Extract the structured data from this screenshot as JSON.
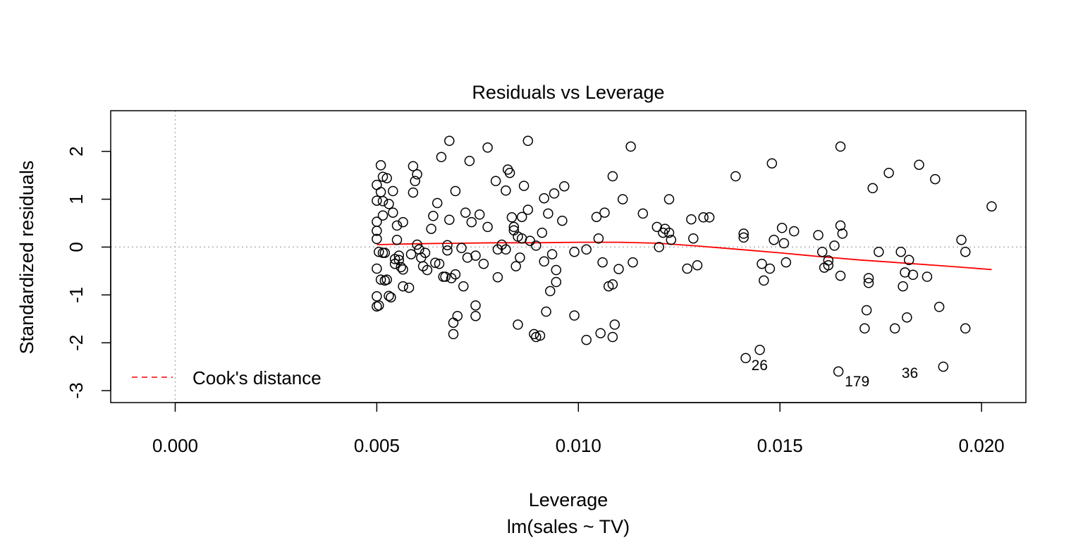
{
  "chart_data": {
    "type": "scatter",
    "title": "Residuals vs Leverage",
    "xlabel": "Leverage",
    "subtitle": "lm(sales ~ TV)",
    "ylabel": "Standardized residuals",
    "xlim": [
      -0.0016,
      0.0211
    ],
    "ylim": [
      -3.25,
      2.85
    ],
    "x_ticks": [
      "0.000",
      "0.005",
      "0.010",
      "0.015",
      "0.020"
    ],
    "x_tick_values": [
      0.0,
      0.005,
      0.01,
      0.015,
      0.02
    ],
    "y_ticks": [
      "-3",
      "-2",
      "-1",
      "0",
      "1",
      "2"
    ],
    "y_tick_values": [
      -3,
      -2,
      -1,
      0,
      1,
      2
    ],
    "reference_lines": {
      "x": 0,
      "y": 0,
      "style": "dotted",
      "color": "#b3b3b3"
    },
    "legend": {
      "position": "bottom-left",
      "entries": [
        {
          "label": "Cook's distance",
          "style": "dashed",
          "color": "#ff0000"
        }
      ]
    },
    "colors": {
      "points": "#000000",
      "smooth": "#ff0000"
    },
    "points": [
      {
        "x": 0.005,
        "y": 1.3
      },
      {
        "x": 0.005,
        "y": 0.97
      },
      {
        "x": 0.005,
        "y": 0.53
      },
      {
        "x": 0.005,
        "y": 0.34
      },
      {
        "x": 0.005,
        "y": 0.17
      },
      {
        "x": 0.005,
        "y": -0.45
      },
      {
        "x": 0.005,
        "y": -1.03
      },
      {
        "x": 0.005,
        "y": -1.24
      },
      {
        "x": 0.00505,
        "y": -1.22
      },
      {
        "x": 0.00505,
        "y": -0.1
      },
      {
        "x": 0.0051,
        "y": 1.71
      },
      {
        "x": 0.0051,
        "y": 1.15
      },
      {
        "x": 0.0051,
        "y": -0.68
      },
      {
        "x": 0.00515,
        "y": 1.47
      },
      {
        "x": 0.00515,
        "y": 0.96
      },
      {
        "x": 0.00515,
        "y": 0.66
      },
      {
        "x": 0.00515,
        "y": -0.12
      },
      {
        "x": 0.0052,
        "y": -0.12
      },
      {
        "x": 0.0052,
        "y": -0.7
      },
      {
        "x": 0.00525,
        "y": 1.44
      },
      {
        "x": 0.00525,
        "y": -0.68
      },
      {
        "x": 0.0053,
        "y": 0.9
      },
      {
        "x": 0.0053,
        "y": -1.02
      },
      {
        "x": 0.00535,
        "y": -1.05
      },
      {
        "x": 0.0054,
        "y": 1.17
      },
      {
        "x": 0.0054,
        "y": 0.72
      },
      {
        "x": 0.00545,
        "y": -0.25
      },
      {
        "x": 0.00545,
        "y": -0.35
      },
      {
        "x": 0.0055,
        "y": 0.45
      },
      {
        "x": 0.0055,
        "y": 0.15
      },
      {
        "x": 0.00555,
        "y": -0.18
      },
      {
        "x": 0.00555,
        "y": -0.27
      },
      {
        "x": 0.0056,
        "y": -0.42
      },
      {
        "x": 0.00565,
        "y": 0.52
      },
      {
        "x": 0.00565,
        "y": -0.47
      },
      {
        "x": 0.00565,
        "y": -0.82
      },
      {
        "x": 0.0058,
        "y": -0.85
      },
      {
        "x": 0.00585,
        "y": -0.15
      },
      {
        "x": 0.0059,
        "y": 1.69
      },
      {
        "x": 0.0059,
        "y": 1.14
      },
      {
        "x": 0.00595,
        "y": 1.38
      },
      {
        "x": 0.006,
        "y": 1.52
      },
      {
        "x": 0.006,
        "y": 0.05
      },
      {
        "x": 0.00605,
        "y": -0.05
      },
      {
        "x": 0.0061,
        "y": -0.22
      },
      {
        "x": 0.00615,
        "y": -0.4
      },
      {
        "x": 0.0062,
        "y": -0.12
      },
      {
        "x": 0.00625,
        "y": -0.48
      },
      {
        "x": 0.00635,
        "y": 0.38
      },
      {
        "x": 0.0064,
        "y": 0.65
      },
      {
        "x": 0.00645,
        "y": -0.33
      },
      {
        "x": 0.0065,
        "y": 0.92
      },
      {
        "x": 0.00655,
        "y": -0.35
      },
      {
        "x": 0.0066,
        "y": 1.88
      },
      {
        "x": 0.00665,
        "y": -0.62
      },
      {
        "x": 0.0067,
        "y": -0.62
      },
      {
        "x": 0.00675,
        "y": 0.04
      },
      {
        "x": 0.00675,
        "y": -0.07
      },
      {
        "x": 0.0068,
        "y": 2.22
      },
      {
        "x": 0.0068,
        "y": 0.57
      },
      {
        "x": 0.00685,
        "y": -0.65
      },
      {
        "x": 0.0069,
        "y": -1.58
      },
      {
        "x": 0.0069,
        "y": -1.82
      },
      {
        "x": 0.00695,
        "y": 1.17
      },
      {
        "x": 0.00695,
        "y": -0.57
      },
      {
        "x": 0.007,
        "y": -1.44
      },
      {
        "x": 0.0071,
        "y": -0.02
      },
      {
        "x": 0.00715,
        "y": -0.82
      },
      {
        "x": 0.0072,
        "y": 0.72
      },
      {
        "x": 0.00725,
        "y": -0.22
      },
      {
        "x": 0.0073,
        "y": 1.8
      },
      {
        "x": 0.00735,
        "y": 0.52
      },
      {
        "x": 0.00745,
        "y": -0.18
      },
      {
        "x": 0.00745,
        "y": -1.22
      },
      {
        "x": 0.00745,
        "y": -1.44
      },
      {
        "x": 0.00755,
        "y": 0.68
      },
      {
        "x": 0.00765,
        "y": -0.35
      },
      {
        "x": 0.00775,
        "y": 2.08
      },
      {
        "x": 0.00775,
        "y": 0.42
      },
      {
        "x": 0.00795,
        "y": 1.38
      },
      {
        "x": 0.008,
        "y": -0.05
      },
      {
        "x": 0.008,
        "y": -0.63
      },
      {
        "x": 0.0081,
        "y": 0.05
      },
      {
        "x": 0.0082,
        "y": -0.05
      },
      {
        "x": 0.0082,
        "y": 1.18
      },
      {
        "x": 0.00825,
        "y": 1.62
      },
      {
        "x": 0.0083,
        "y": 1.55
      },
      {
        "x": 0.00835,
        "y": 0.62
      },
      {
        "x": 0.0084,
        "y": 0.42
      },
      {
        "x": 0.0084,
        "y": 0.35
      },
      {
        "x": 0.00845,
        "y": -0.4
      },
      {
        "x": 0.0085,
        "y": -1.62
      },
      {
        "x": 0.0085,
        "y": 0.22
      },
      {
        "x": 0.00855,
        "y": -0.22
      },
      {
        "x": 0.0086,
        "y": 0.63
      },
      {
        "x": 0.0086,
        "y": 0.18
      },
      {
        "x": 0.00865,
        "y": 1.28
      },
      {
        "x": 0.00875,
        "y": 2.22
      },
      {
        "x": 0.00875,
        "y": 0.78
      },
      {
        "x": 0.0088,
        "y": 0.13
      },
      {
        "x": 0.0089,
        "y": -1.82
      },
      {
        "x": 0.00895,
        "y": -1.88
      },
      {
        "x": 0.00895,
        "y": 0.03
      },
      {
        "x": 0.00905,
        "y": -1.85
      },
      {
        "x": 0.0091,
        "y": 0.3
      },
      {
        "x": 0.00915,
        "y": -0.3
      },
      {
        "x": 0.00915,
        "y": 1.02
      },
      {
        "x": 0.0092,
        "y": -1.35
      },
      {
        "x": 0.00925,
        "y": 0.7
      },
      {
        "x": 0.0093,
        "y": -0.92
      },
      {
        "x": 0.00935,
        "y": -0.15
      },
      {
        "x": 0.0094,
        "y": 1.12
      },
      {
        "x": 0.00945,
        "y": -0.48
      },
      {
        "x": 0.00945,
        "y": -0.73
      },
      {
        "x": 0.0096,
        "y": 0.55
      },
      {
        "x": 0.00965,
        "y": 1.27
      },
      {
        "x": 0.0099,
        "y": -0.1
      },
      {
        "x": 0.0099,
        "y": -1.43
      },
      {
        "x": 0.0102,
        "y": -0.05
      },
      {
        "x": 0.0102,
        "y": -1.94
      },
      {
        "x": 0.01045,
        "y": 0.63
      },
      {
        "x": 0.0105,
        "y": 0.18
      },
      {
        "x": 0.01055,
        "y": -1.8
      },
      {
        "x": 0.0106,
        "y": -0.32
      },
      {
        "x": 0.01065,
        "y": 0.72
      },
      {
        "x": 0.01075,
        "y": -0.82
      },
      {
        "x": 0.01085,
        "y": -1.88
      },
      {
        "x": 0.01085,
        "y": -0.78
      },
      {
        "x": 0.01085,
        "y": 1.48
      },
      {
        "x": 0.0109,
        "y": -1.62
      },
      {
        "x": 0.011,
        "y": -0.46
      },
      {
        "x": 0.0111,
        "y": 1.0
      },
      {
        "x": 0.0113,
        "y": 2.1
      },
      {
        "x": 0.01135,
        "y": -0.32
      },
      {
        "x": 0.0116,
        "y": 0.7
      },
      {
        "x": 0.01195,
        "y": 0.42
      },
      {
        "x": 0.012,
        "y": 0.0
      },
      {
        "x": 0.0121,
        "y": 0.3
      },
      {
        "x": 0.01215,
        "y": 0.38
      },
      {
        "x": 0.01225,
        "y": 1.0
      },
      {
        "x": 0.01225,
        "y": 0.3
      },
      {
        "x": 0.0123,
        "y": 0.15
      },
      {
        "x": 0.0127,
        "y": -0.45
      },
      {
        "x": 0.0128,
        "y": 0.58
      },
      {
        "x": 0.01285,
        "y": 0.18
      },
      {
        "x": 0.01295,
        "y": -0.38
      },
      {
        "x": 0.0131,
        "y": 0.62
      },
      {
        "x": 0.01325,
        "y": 0.62
      },
      {
        "x": 0.0139,
        "y": 1.48
      },
      {
        "x": 0.0141,
        "y": 0.28
      },
      {
        "x": 0.0141,
        "y": 0.2
      },
      {
        "x": 0.01415,
        "y": -2.32
      },
      {
        "x": 0.0145,
        "y": -2.15
      },
      {
        "x": 0.01455,
        "y": -0.35
      },
      {
        "x": 0.0146,
        "y": -0.7
      },
      {
        "x": 0.01475,
        "y": -0.45
      },
      {
        "x": 0.0148,
        "y": 1.75
      },
      {
        "x": 0.01485,
        "y": 0.15
      },
      {
        "x": 0.01505,
        "y": 0.4
      },
      {
        "x": 0.0151,
        "y": 0.08
      },
      {
        "x": 0.01515,
        "y": -0.32
      },
      {
        "x": 0.01535,
        "y": 0.33
      },
      {
        "x": 0.01595,
        "y": 0.25
      },
      {
        "x": 0.01605,
        "y": -0.1
      },
      {
        "x": 0.0161,
        "y": -0.43
      },
      {
        "x": 0.0162,
        "y": -0.28
      },
      {
        "x": 0.0162,
        "y": -0.38
      },
      {
        "x": 0.01635,
        "y": 0.03
      },
      {
        "x": 0.01645,
        "y": -2.6
      },
      {
        "x": 0.0165,
        "y": 2.1
      },
      {
        "x": 0.0165,
        "y": 0.45
      },
      {
        "x": 0.0165,
        "y": -0.6
      },
      {
        "x": 0.01655,
        "y": 0.28
      },
      {
        "x": 0.0171,
        "y": -1.7
      },
      {
        "x": 0.01715,
        "y": -1.32
      },
      {
        "x": 0.0172,
        "y": -0.65
      },
      {
        "x": 0.0172,
        "y": -0.75
      },
      {
        "x": 0.0173,
        "y": 1.23
      },
      {
        "x": 0.01745,
        "y": -0.1
      },
      {
        "x": 0.0177,
        "y": 1.55
      },
      {
        "x": 0.01785,
        "y": -1.7
      },
      {
        "x": 0.018,
        "y": -0.1
      },
      {
        "x": 0.01805,
        "y": -0.82
      },
      {
        "x": 0.0181,
        "y": -0.53
      },
      {
        "x": 0.01815,
        "y": -1.47
      },
      {
        "x": 0.0182,
        "y": -0.27
      },
      {
        "x": 0.0183,
        "y": -0.58
      },
      {
        "x": 0.01845,
        "y": 1.72
      },
      {
        "x": 0.01865,
        "y": -0.62
      },
      {
        "x": 0.01885,
        "y": 1.42
      },
      {
        "x": 0.01895,
        "y": -1.25
      },
      {
        "x": 0.01905,
        "y": -2.5
      },
      {
        "x": 0.0195,
        "y": 0.15
      },
      {
        "x": 0.0196,
        "y": -0.1
      },
      {
        "x": 0.0196,
        "y": -1.7
      },
      {
        "x": 0.02025,
        "y": 0.85
      }
    ],
    "point_labels": [
      {
        "text": "26",
        "x": 0.01415,
        "y": -2.32
      },
      {
        "text": "179",
        "x": 0.01645,
        "y": -2.6
      },
      {
        "text": "36",
        "x": 0.01905,
        "y": -2.5
      }
    ],
    "smooth_line": {
      "x": [
        0.005,
        0.006,
        0.007,
        0.008,
        0.009,
        0.01,
        0.011,
        0.012,
        0.013,
        0.014,
        0.015,
        0.016,
        0.017,
        0.018,
        0.019,
        0.02025
      ],
      "y": [
        0.05,
        0.07,
        0.08,
        0.09,
        0.09,
        0.1,
        0.1,
        0.08,
        0.02,
        -0.05,
        -0.12,
        -0.2,
        -0.27,
        -0.33,
        -0.39,
        -0.47
      ]
    }
  }
}
